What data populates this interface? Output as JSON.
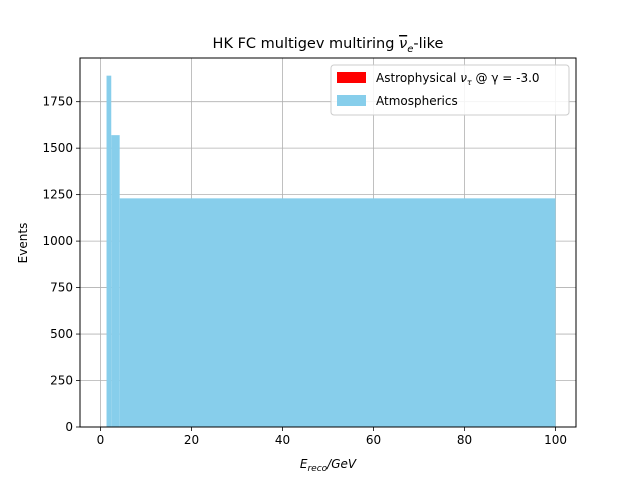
{
  "chart_data": {
    "type": "bar",
    "title_main": "HK FC multigev multiring ",
    "title_over": "ν",
    "title_sub": "e",
    "title_tail": "-like",
    "ylabel": "Events",
    "xlabel_main": "E",
    "xlabel_sub": "reco",
    "xlabel_tail": "/GeV",
    "xlim": [
      -4.5,
      104.5
    ],
    "ylim": [
      0,
      1985
    ],
    "x_ticks": [
      0,
      20,
      40,
      60,
      80,
      100
    ],
    "x_tick_labels": [
      "0",
      "20",
      "40",
      "60",
      "80",
      "100"
    ],
    "y_ticks": [
      0,
      250,
      500,
      750,
      1000,
      1250,
      1500,
      1750
    ],
    "y_tick_labels": [
      "0",
      "250",
      "500",
      "750",
      "1000",
      "1250",
      "1500",
      "1750"
    ],
    "grid": true,
    "legend_position": "top-right",
    "series": [
      {
        "name": "Astrophysical ν_τ @ γ = -3.0",
        "legend_main": "Astrophysical ",
        "legend_nu": "ν",
        "legend_nu_sub": "τ",
        "legend_tail": " @ γ = -3.0",
        "color": "#ff0000",
        "bins": []
      },
      {
        "name": "Atmospherics",
        "color": "#87ceeb",
        "bins": [
          {
            "x0": 1.33,
            "x1": 2.37,
            "value": 1890
          },
          {
            "x0": 2.37,
            "x1": 4.22,
            "value": 1570
          },
          {
            "x0": 4.22,
            "x1": 100,
            "value": 1230
          }
        ]
      }
    ]
  }
}
